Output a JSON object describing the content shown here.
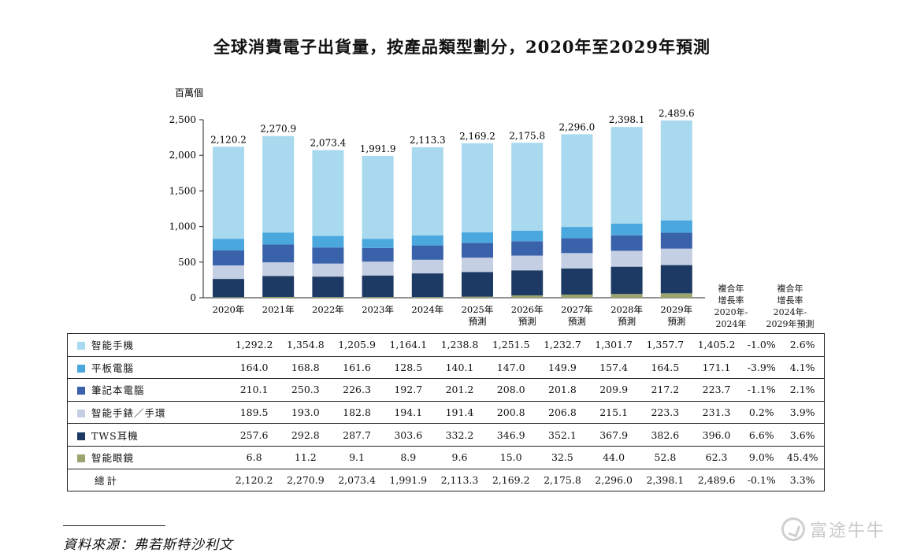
{
  "title": "全球消費電子出貨量，按產品類型劃分，2020年至2029年預測",
  "source": "資料來源：弗若斯特沙利文",
  "watermark": "富途牛牛",
  "chart_data": {
    "type": "bar",
    "stacked": true,
    "unit_label": "百萬個",
    "ylim": [
      0,
      2500
    ],
    "yticks": [
      0,
      500,
      1000,
      1500,
      2000,
      2500
    ],
    "ytick_labels": [
      "0",
      "500",
      "1,000",
      "1,500",
      "2,000",
      "2,500"
    ],
    "categories": [
      [
        "2020年"
      ],
      [
        "2021年"
      ],
      [
        "2022年"
      ],
      [
        "2023年"
      ],
      [
        "2024年"
      ],
      [
        "2025年",
        "預測"
      ],
      [
        "2026年",
        "預測"
      ],
      [
        "2027年",
        "預測"
      ],
      [
        "2028年",
        "預測"
      ],
      [
        "2029年",
        "預測"
      ]
    ],
    "series": [
      {
        "name": "智能眼鏡",
        "color": "#9aa46e",
        "values": [
          6.8,
          11.2,
          9.1,
          8.9,
          9.6,
          15.0,
          32.5,
          44.0,
          52.8,
          62.3
        ],
        "labels": [
          "6.8",
          "11.2",
          "9.1",
          "8.9",
          "9.6",
          "15.0",
          "32.5",
          "44.0",
          "52.8",
          "62.3"
        ],
        "cagr": [
          "9.0%",
          "45.4%"
        ]
      },
      {
        "name": "TWS耳機",
        "color": "#1c3a64",
        "values": [
          257.6,
          292.8,
          287.7,
          303.6,
          332.2,
          346.9,
          352.1,
          367.9,
          382.6,
          396.0
        ],
        "labels": [
          "257.6",
          "292.8",
          "287.7",
          "303.6",
          "332.2",
          "346.9",
          "352.1",
          "367.9",
          "382.6",
          "396.0"
        ],
        "cagr": [
          "6.6%",
          "3.6%"
        ]
      },
      {
        "name": "智能手錶／手環",
        "color": "#c5cfe3",
        "values": [
          189.5,
          193.0,
          182.8,
          194.1,
          191.4,
          200.8,
          206.8,
          215.1,
          223.3,
          231.3
        ],
        "labels": [
          "189.5",
          "193.0",
          "182.8",
          "194.1",
          "191.4",
          "200.8",
          "206.8",
          "215.1",
          "223.3",
          "231.3"
        ],
        "cagr": [
          "0.2%",
          "3.9%"
        ]
      },
      {
        "name": "筆記本電腦",
        "color": "#3a62aa",
        "values": [
          210.1,
          250.3,
          226.3,
          192.7,
          201.2,
          208.0,
          201.8,
          209.9,
          217.2,
          223.7
        ],
        "labels": [
          "210.1",
          "250.3",
          "226.3",
          "192.7",
          "201.2",
          "208.0",
          "201.8",
          "209.9",
          "217.2",
          "223.7"
        ],
        "cagr": [
          "-1.1%",
          "2.1%"
        ]
      },
      {
        "name": "平板電腦",
        "color": "#4aa8de",
        "values": [
          164.0,
          168.8,
          161.6,
          128.5,
          140.1,
          147.0,
          149.9,
          157.4,
          164.5,
          171.1
        ],
        "labels": [
          "164.0",
          "168.8",
          "161.6",
          "128.5",
          "140.1",
          "147.0",
          "149.9",
          "157.4",
          "164.5",
          "171.1"
        ],
        "cagr": [
          "-3.9%",
          "4.1%"
        ]
      },
      {
        "name": "智能手機",
        "color": "#a8d9ee",
        "values": [
          1292.2,
          1354.8,
          1205.9,
          1164.1,
          1238.8,
          1251.5,
          1232.7,
          1301.7,
          1357.7,
          1405.2
        ],
        "labels": [
          "1,292.2",
          "1,354.8",
          "1,205.9",
          "1,164.1",
          "1,238.8",
          "1,251.5",
          "1,232.7",
          "1,301.7",
          "1,357.7",
          "1,405.2"
        ],
        "cagr": [
          "-1.0%",
          "2.6%"
        ]
      }
    ],
    "totals": [
      2120.2,
      2270.9,
      2073.4,
      1991.9,
      2113.3,
      2169.2,
      2175.8,
      2296.0,
      2398.1,
      2489.6
    ],
    "total_labels": [
      "2,120.2",
      "2,270.9",
      "2,073.4",
      "1,991.9",
      "2,113.3",
      "2,169.2",
      "2,175.8",
      "2,296.0",
      "2,398.1",
      "2,489.6"
    ],
    "total_row": {
      "name": "總計",
      "cagr": [
        "-0.1%",
        "3.3%"
      ]
    },
    "table_order": [
      "智能手機",
      "平板電腦",
      "筆記本電腦",
      "智能手錶／手環",
      "TWS耳機",
      "智能眼鏡"
    ],
    "cagr_headers": [
      [
        "複合年",
        "增長率",
        "2020年-",
        "2024年"
      ],
      [
        "複合年",
        "增長率",
        "2024年-",
        "2029年預測"
      ]
    ]
  }
}
